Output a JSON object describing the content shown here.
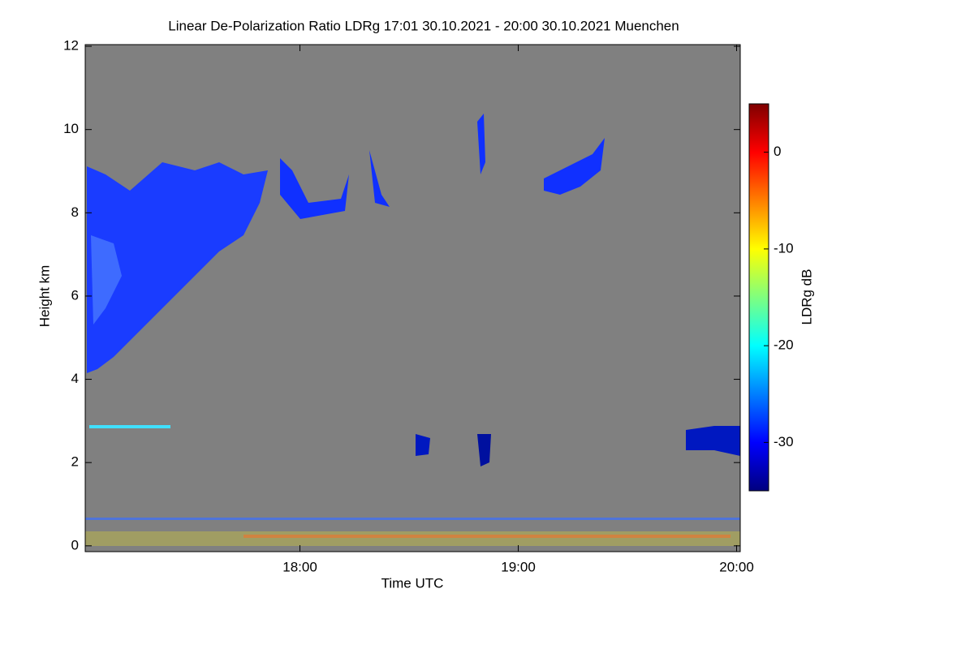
{
  "chart_data": {
    "type": "heatmap",
    "title": "Linear De-Polarization Ratio LDRg   17:01 30.10.2021 - 20:00 30.10.2021 Muenchen",
    "x_label": "Time UTC",
    "y_label": "Height km",
    "colorbar_label": "LDRg dB",
    "xlim": [
      1021,
      1201
    ],
    "xticks": [
      {
        "value": 1080,
        "label": "18:00"
      },
      {
        "value": 1140,
        "label": "19:00"
      },
      {
        "value": 1200,
        "label": "20:00"
      }
    ],
    "ylim": [
      -0.14,
      12.04
    ],
    "yticks": [
      0,
      2,
      4,
      6,
      8,
      10,
      12
    ],
    "clim": [
      -35,
      5
    ],
    "cticks": [
      0,
      -10,
      -20,
      -30
    ],
    "colormap": [
      "#00007f",
      "#0000ff",
      "#007fff",
      "#00ffff",
      "#7fff7f",
      "#ffff00",
      "#ff7f00",
      "#ff0000",
      "#7f0000"
    ],
    "background_color": "#808080"
  }
}
